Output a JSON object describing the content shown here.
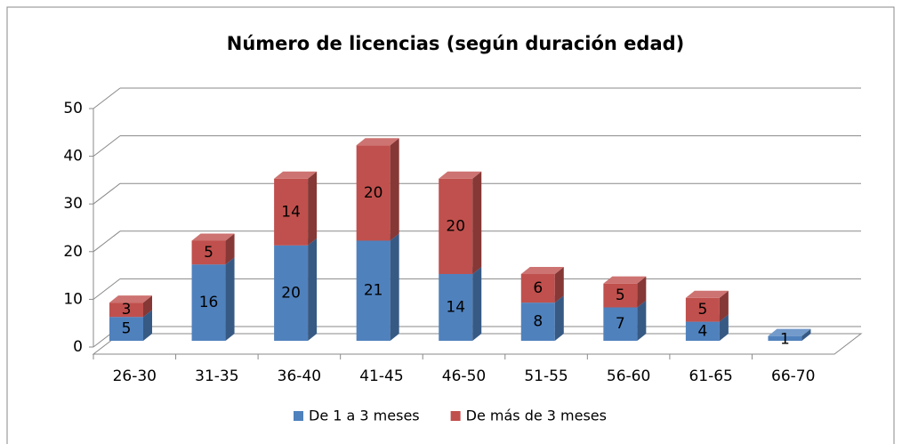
{
  "chart_data": {
    "type": "bar",
    "stacked": true,
    "title": "Número de licencias (según duración  edad)",
    "categories": [
      "26-30",
      "31-35",
      "36-40",
      "41-45",
      "46-50",
      "51-55",
      "56-60",
      "61-65",
      "66-70"
    ],
    "series": [
      {
        "name": "De 1 a 3 meses",
        "color": "#4f81bd",
        "values": [
          5,
          16,
          20,
          21,
          14,
          8,
          7,
          4,
          1
        ]
      },
      {
        "name": "De más de 3 meses",
        "color": "#c0504d",
        "values": [
          3,
          5,
          14,
          20,
          20,
          6,
          5,
          5,
          null
        ]
      }
    ],
    "ylim": [
      0,
      50
    ],
    "yticks": [
      0,
      10,
      20,
      30,
      40,
      50
    ],
    "grid": true,
    "legend": "bottom"
  }
}
